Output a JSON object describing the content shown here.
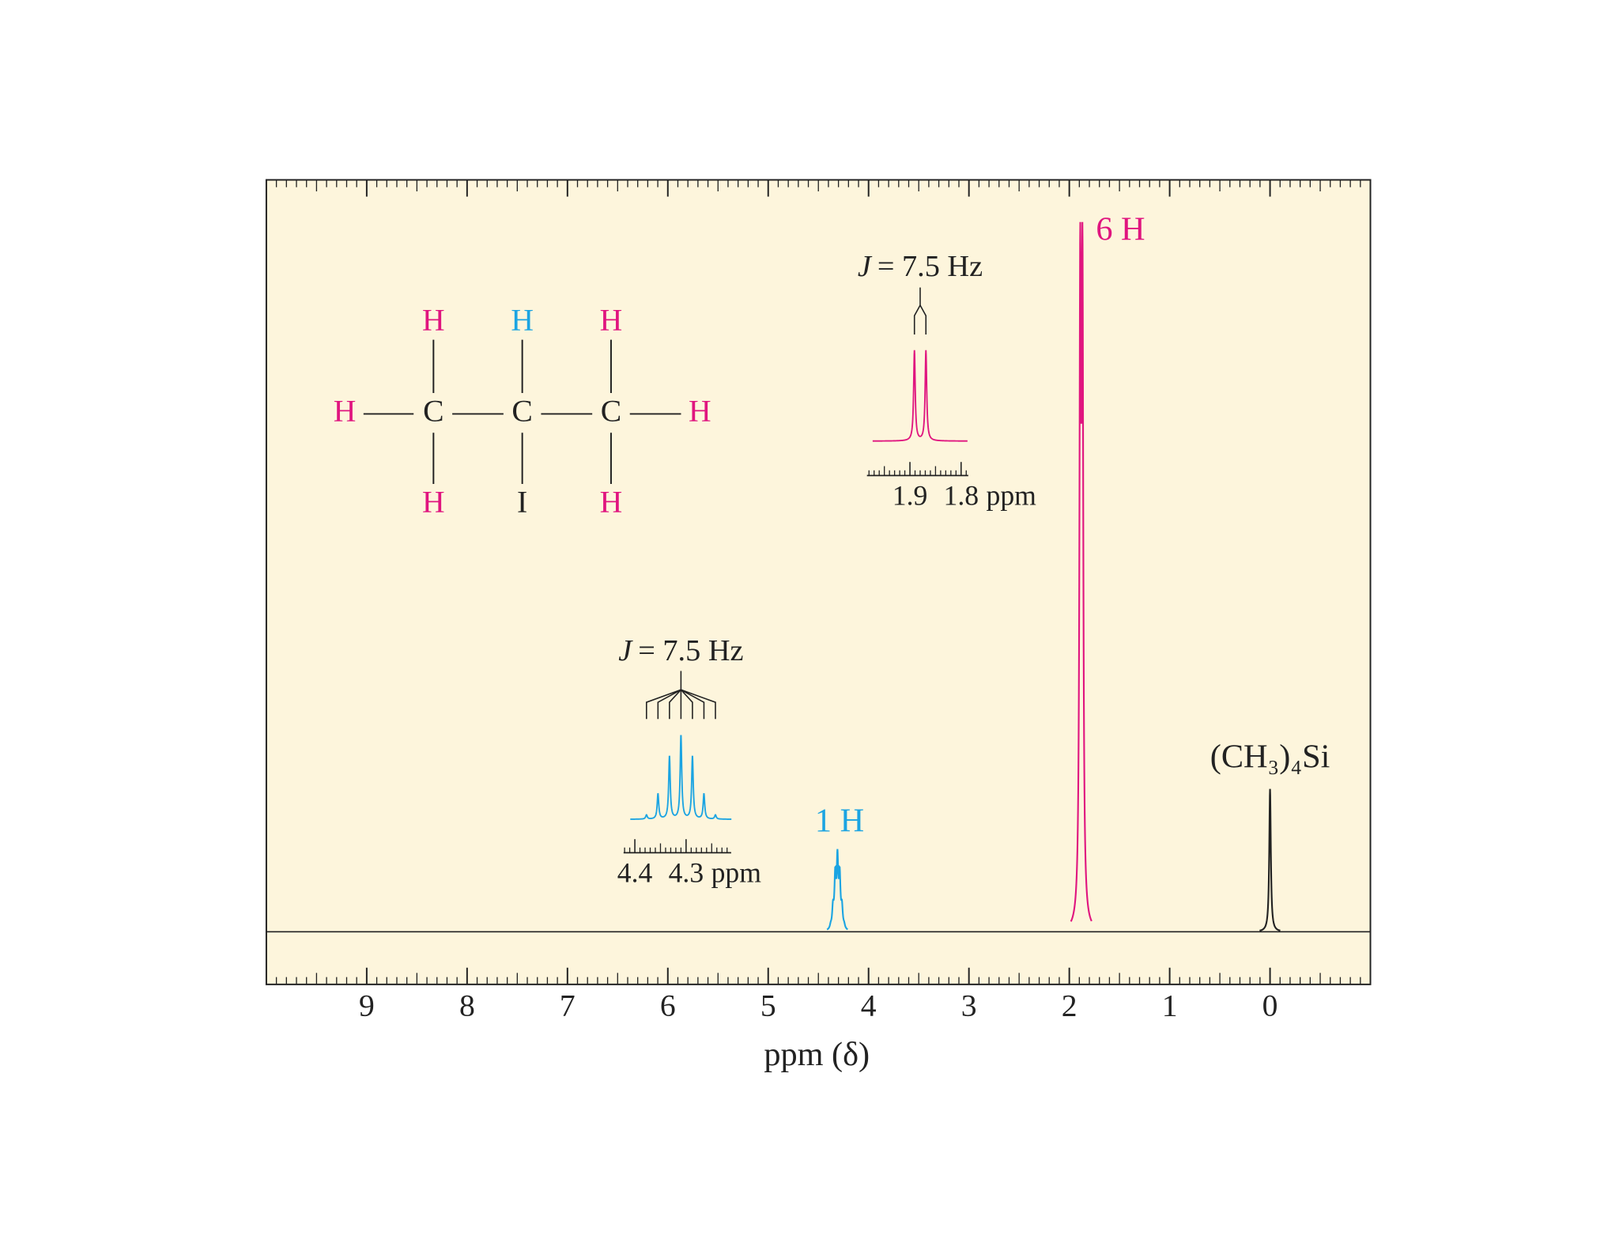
{
  "chart_data": {
    "type": "nmr",
    "xlabel": "ppm (δ)",
    "xlim": [
      10,
      -1
    ],
    "xticks": [
      9,
      8,
      7,
      6,
      5,
      4,
      3,
      2,
      1,
      0
    ],
    "ylim": [
      -7,
      100
    ],
    "series": [
      {
        "name": "1 H",
        "color": "#1ba4e2",
        "x": [
          4.31
        ],
        "values": [
          11
        ],
        "multiplicity": 7,
        "inset": {
          "xlim": [
            4.422,
            4.212
          ],
          "xticks": [
            4.4,
            4.3
          ],
          "unit": "ppm",
          "j_symbol": "J",
          "j_text": "= 7.5 Hz"
        }
      },
      {
        "name": "6 H",
        "color": "#e0157f",
        "x": [
          1.88
        ],
        "values": [
          94.4
        ],
        "multiplicity": 2,
        "inset": {
          "xlim": [
            1.984,
            1.786
          ],
          "xticks": [
            1.9,
            1.8
          ],
          "unit": "ppm",
          "j_symbol": "J",
          "j_text": "= 7.5 Hz"
        }
      },
      {
        "name": "(CH₃)₄Si",
        "color": "#222222",
        "x": [
          0
        ],
        "values": [
          19
        ],
        "multiplicity": 1
      }
    ]
  },
  "molecule": {
    "atoms": [
      {
        "label": "H",
        "color": "#e0157f"
      },
      {
        "label": "H",
        "color": "#1ba4e2"
      },
      {
        "label": "H",
        "color": "#e0157f"
      },
      {
        "label": "H",
        "color": "#e0157f"
      },
      {
        "label": "C",
        "color": "#222222"
      },
      {
        "label": "C",
        "color": "#222222"
      },
      {
        "label": "C",
        "color": "#222222"
      },
      {
        "label": "H",
        "color": "#e0157f"
      },
      {
        "label": "H",
        "color": "#e0157f"
      },
      {
        "label": "I",
        "color": "#222222"
      },
      {
        "label": "H",
        "color": "#e0157f"
      }
    ]
  }
}
